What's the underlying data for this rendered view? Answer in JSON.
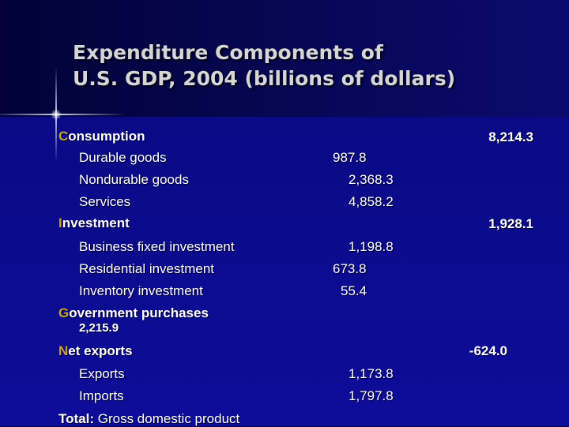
{
  "title": {
    "line1": "Expenditure Components of",
    "line2": "U.S. GDP, 2004 (billions of dollars)"
  },
  "consumption": {
    "label": "Consumption",
    "value": "8,214.3"
  },
  "durable_goods": {
    "label": "Durable goods",
    "value": "987.8"
  },
  "nondurable_goods": {
    "label": "Nondurable goods",
    "value": "2,368.3"
  },
  "services": {
    "label": "Services",
    "value": "4,858.2"
  },
  "investment": {
    "label": "Investment",
    "value": "1,928.1"
  },
  "business_fixed": {
    "label": "Business fixed investment",
    "value": "1,198.8"
  },
  "residential": {
    "label": "Residential investment",
    "value": "673.8"
  },
  "inventory": {
    "label": "Inventory investment",
    "value": "55.4"
  },
  "government": {
    "label": "Government purchases",
    "value": "2,215.9"
  },
  "net_exports": {
    "label": "Net exports",
    "value": "-624.0"
  },
  "exports": {
    "label": "Exports",
    "value": "1,173.8"
  },
  "imports": {
    "label": "Imports",
    "value": "1,797.8"
  },
  "total": {
    "label": "Total:",
    "rest": " Gross domestic product"
  }
}
